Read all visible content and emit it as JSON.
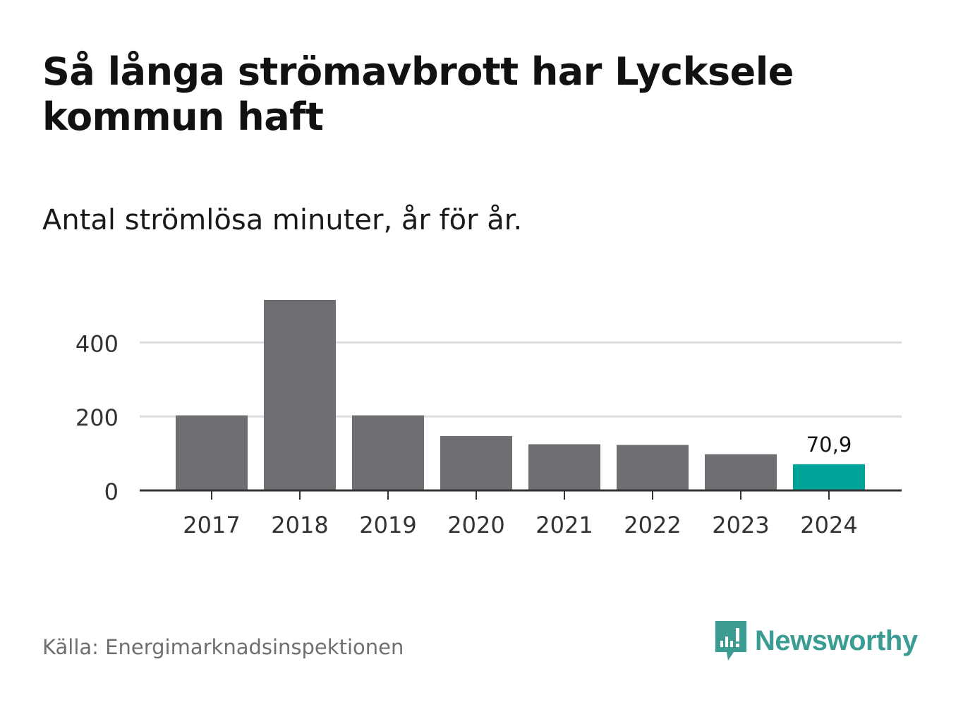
{
  "title": "Så långa strömavbrott har Lycksele kommun haft",
  "subtitle": "Antal strömlösa minuter, år för år.",
  "source": "Källa: Energimarknadsinspektionen",
  "logo": {
    "text": "Newsworthy",
    "icon": "newsworthy-chart-bubble-icon"
  },
  "colors": {
    "bar": "#6f6e73",
    "highlight": "#00a398",
    "grid": "#dddddd",
    "axis": "#333333",
    "brand": "#3b9c94"
  },
  "chart_data": {
    "type": "bar",
    "title": "Så långa strömavbrott har Lycksele kommun haft",
    "subtitle": "Antal strömlösa minuter, år för år.",
    "xlabel": "",
    "ylabel": "",
    "categories": [
      "2017",
      "2018",
      "2019",
      "2020",
      "2021",
      "2022",
      "2023",
      "2024"
    ],
    "values": [
      203,
      515,
      203,
      147,
      125,
      123,
      98,
      70.9
    ],
    "highlight_index": 7,
    "data_labels": [
      {
        "index": 7,
        "text": "70,9"
      }
    ],
    "yticks": [
      0,
      200,
      400
    ],
    "ytick_labels": [
      "0",
      "200",
      "400"
    ],
    "ylim": [
      0,
      515
    ],
    "grid": true,
    "legend": "none"
  }
}
